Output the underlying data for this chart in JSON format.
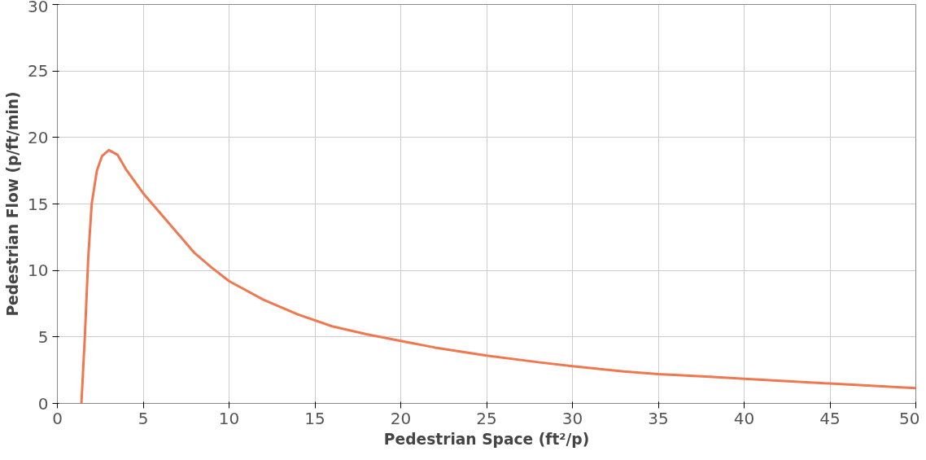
{
  "chart_data": {
    "type": "line",
    "xlabel": "Pedestrian Space (ft²/p)",
    "ylabel": "Pedestrian Flow (p/ft/min)",
    "x": [
      1.4,
      1.6,
      1.8,
      2.0,
      2.3,
      2.6,
      3.0,
      3.5,
      4,
      5,
      6,
      7,
      8,
      9,
      10,
      12,
      14,
      16,
      18,
      20,
      22,
      25,
      28,
      30,
      33,
      35,
      38,
      40,
      45,
      50
    ],
    "series": [
      {
        "color": "#f07850",
        "values": [
          0,
          5,
          11,
          15,
          17.5,
          18.6,
          19.05,
          18.7,
          17.6,
          15.8,
          14.3,
          12.8,
          11.3,
          10.2,
          9.2,
          7.8,
          6.7,
          5.8,
          5.2,
          4.7,
          4.2,
          3.6,
          3.1,
          2.8,
          2.4,
          2.2,
          2.0,
          1.85,
          1.5,
          1.15
        ]
      }
    ],
    "xlim": [
      0,
      50
    ],
    "ylim": [
      0,
      30
    ],
    "xticks": [
      0,
      5,
      10,
      15,
      20,
      25,
      30,
      35,
      40,
      45,
      50
    ],
    "yticks": [
      0,
      5,
      10,
      15,
      20,
      25,
      30
    ],
    "grid": true,
    "marker": "none",
    "line_style": "solid"
  }
}
